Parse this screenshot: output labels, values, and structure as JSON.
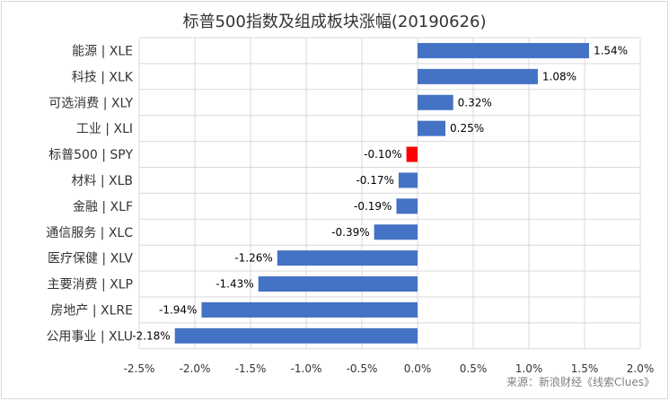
{
  "title": "标普500指数及组成板块涨幅(20190626)",
  "source": "来源：新浪财经《线索Clues》",
  "chart_data": {
    "type": "bar",
    "orientation": "horizontal",
    "title": "标普500指数及组成板块涨幅(20190626)",
    "categories": [
      "能源 | XLE",
      "科技 | XLK",
      "可选消费 | XLY",
      "工业 | XLI",
      "标普500 | SPY",
      "材料 | XLB",
      "金融 | XLF",
      "通信服务 | XLC",
      "医疗保健 | XLV",
      "主要消费 | XLP",
      "房地产 | XLRE",
      "公用事业 | XLU"
    ],
    "values": [
      1.54,
      1.08,
      0.32,
      0.25,
      -0.1,
      -0.17,
      -0.19,
      -0.39,
      -1.26,
      -1.43,
      -1.94,
      -2.18
    ],
    "data_labels": [
      "1.54%",
      "1.08%",
      "0.32%",
      "0.25%",
      "-0.10%",
      "-0.17%",
      "-0.19%",
      "-0.39%",
      "-1.26%",
      "-1.43%",
      "-1.94%",
      "-2.18%"
    ],
    "xlim": [
      -2.5,
      2.0
    ],
    "xticks": [
      -2.5,
      -2.0,
      -1.5,
      -1.0,
      -0.5,
      0.0,
      0.5,
      1.0,
      1.5,
      2.0
    ],
    "xtick_labels": [
      "-2.5%",
      "-2.0%",
      "-1.5%",
      "-1.0%",
      "-0.5%",
      "0.0%",
      "0.5%",
      "1.0%",
      "1.5%",
      "2.0%"
    ],
    "xlabel": "",
    "ylabel": "",
    "grid": "vertical",
    "colors": {
      "bar": "#4472c4",
      "highlight": "#ff0000",
      "grid": "#d9d9d9"
    },
    "highlight_index": 4
  }
}
